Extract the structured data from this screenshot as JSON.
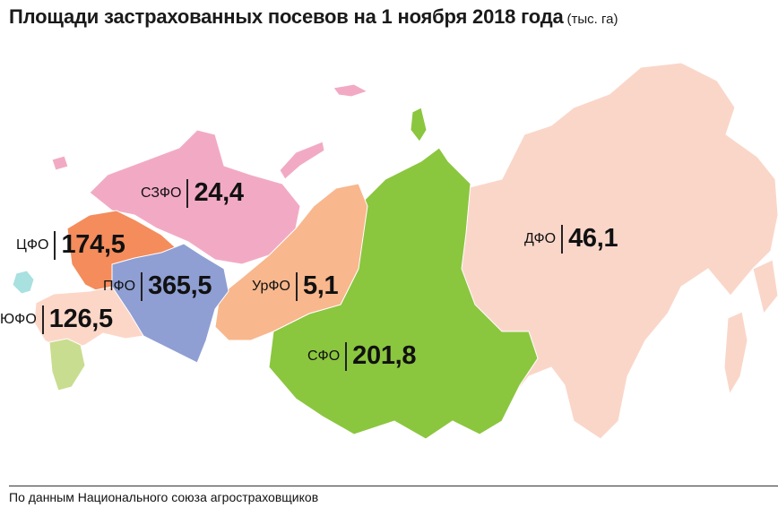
{
  "title": {
    "main": "Площади застрахованных посевов на 1 ноября 2018 года",
    "unit": "(тыс. га)"
  },
  "colors": {
    "szfo": "#f2aac4",
    "cfo": "#f48c5c",
    "pfo": "#8f9fd3",
    "yufo": "#fcd7c8",
    "skfo": "#c9dd90",
    "crimea": "#a9e0e0",
    "urfo": "#f8b78d",
    "sfo": "#8bc63f",
    "dfo": "#fad6c9"
  },
  "regions": [
    {
      "id": "szfo",
      "name": "СЗФО",
      "value": "24,4"
    },
    {
      "id": "cfo",
      "name": "ЦФО",
      "value": "174,5"
    },
    {
      "id": "pfo",
      "name": "ПФО",
      "value": "365,5"
    },
    {
      "id": "yufo",
      "name": "ЮФО",
      "value": "126,5"
    },
    {
      "id": "urfo",
      "name": "УрФО",
      "value": "5,1"
    },
    {
      "id": "sfo",
      "name": "СФО",
      "value": "201,8"
    },
    {
      "id": "dfo",
      "name": "ДФО",
      "value": "46,1"
    }
  ],
  "footer": "По данным Национального союза агростраховщиков"
}
